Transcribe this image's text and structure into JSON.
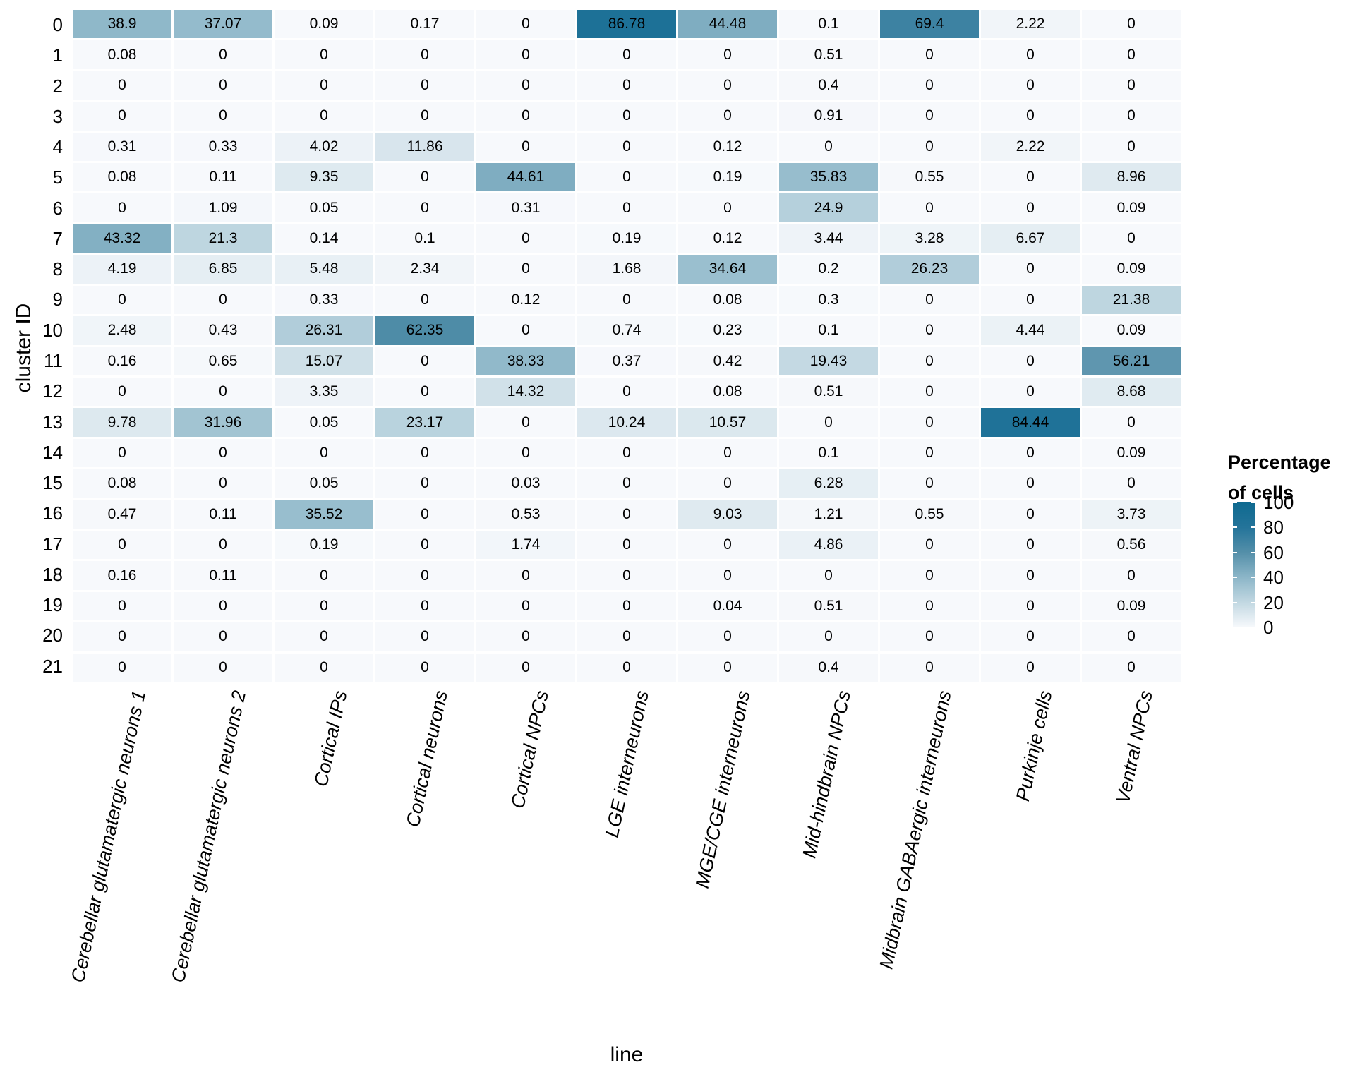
{
  "figure": {
    "background": "#ffffff",
    "grid_gap_color": "#ffffff",
    "text_color": "#000000"
  },
  "chart_data": {
    "type": "heatmap",
    "title": "",
    "xlabel": "line",
    "ylabel": "cluster ID",
    "legend_title": "Percentage of cells",
    "legend_title_lines": [
      "Percentage",
      "of cells"
    ],
    "legend_ticks": [
      100,
      80,
      60,
      40,
      20,
      0
    ],
    "value_range": [
      0,
      100
    ],
    "grid": false,
    "legend_position": "right",
    "color_scale": {
      "min": 0,
      "max": 100,
      "stops": [
        {
          "value": 0,
          "color": "#f7f9fc"
        },
        {
          "value": 20,
          "color": "#c2d8e2"
        },
        {
          "value": 40,
          "color": "#8cb6c8"
        },
        {
          "value": 60,
          "color": "#548fa9"
        },
        {
          "value": 80,
          "color": "#24749a"
        },
        {
          "value": 100,
          "color": "#0f6a90"
        }
      ]
    },
    "columns": [
      "Cerebellar glutamatergic neurons 1",
      "Cerebellar glutamatergic neurons 2",
      "Cortical IPs",
      "Cortical neurons",
      "Cortical NPCs",
      "LGE interneurons",
      "MGE/CGE interneurons",
      "Mid-hindbrain NPCs",
      "Midbrain GABAergic interneurons",
      "Purkinje cells",
      "Ventral NPCs"
    ],
    "rows": [
      "0",
      "1",
      "2",
      "3",
      "4",
      "5",
      "6",
      "7",
      "8",
      "9",
      "10",
      "11",
      "12",
      "13",
      "14",
      "15",
      "16",
      "17",
      "18",
      "19",
      "20",
      "21"
    ],
    "values": [
      [
        38.9,
        37.07,
        0.09,
        0.17,
        0,
        86.78,
        44.48,
        0.1,
        69.4,
        2.22,
        0
      ],
      [
        0.08,
        0,
        0,
        0,
        0,
        0,
        0,
        0.51,
        0,
        0,
        0
      ],
      [
        0,
        0,
        0,
        0,
        0,
        0,
        0,
        0.4,
        0,
        0,
        0
      ],
      [
        0,
        0,
        0,
        0,
        0,
        0,
        0,
        0.91,
        0,
        0,
        0
      ],
      [
        0.31,
        0.33,
        4.02,
        11.86,
        0,
        0,
        0.12,
        0,
        0,
        2.22,
        0
      ],
      [
        0.08,
        0.11,
        9.35,
        0,
        44.61,
        0,
        0.19,
        35.83,
        0.55,
        0,
        8.96
      ],
      [
        0,
        1.09,
        0.05,
        0,
        0.31,
        0,
        0,
        24.9,
        0,
        0,
        0.09
      ],
      [
        43.32,
        21.3,
        0.14,
        0.1,
        0,
        0.19,
        0.12,
        3.44,
        3.28,
        6.67,
        0
      ],
      [
        4.19,
        6.85,
        5.48,
        2.34,
        0,
        1.68,
        34.64,
        0.2,
        26.23,
        0,
        0.09
      ],
      [
        0,
        0,
        0.33,
        0,
        0.12,
        0,
        0.08,
        0.3,
        0,
        0,
        21.38
      ],
      [
        2.48,
        0.43,
        26.31,
        62.35,
        0,
        0.74,
        0.23,
        0.1,
        0,
        4.44,
        0.09
      ],
      [
        0.16,
        0.65,
        15.07,
        0,
        38.33,
        0.37,
        0.42,
        19.43,
        0,
        0,
        56.21
      ],
      [
        0,
        0,
        3.35,
        0,
        14.32,
        0,
        0.08,
        0.51,
        0,
        0,
        8.68
      ],
      [
        9.78,
        31.96,
        0.05,
        23.17,
        0,
        10.24,
        10.57,
        0,
        0,
        84.44,
        0
      ],
      [
        0,
        0,
        0,
        0,
        0,
        0,
        0,
        0.1,
        0,
        0,
        0.09
      ],
      [
        0.08,
        0,
        0.05,
        0,
        0.03,
        0,
        0,
        6.28,
        0,
        0,
        0
      ],
      [
        0.47,
        0.11,
        35.52,
        0,
        0.53,
        0,
        9.03,
        1.21,
        0.55,
        0,
        3.73
      ],
      [
        0,
        0,
        0.19,
        0,
        1.74,
        0,
        0,
        4.86,
        0,
        0,
        0.56
      ],
      [
        0.16,
        0.11,
        0,
        0,
        0,
        0,
        0,
        0,
        0,
        0,
        0
      ],
      [
        0,
        0,
        0,
        0,
        0,
        0,
        0.04,
        0.51,
        0,
        0,
        0.09
      ],
      [
        0,
        0,
        0,
        0,
        0,
        0,
        0,
        0,
        0,
        0,
        0
      ],
      [
        0,
        0,
        0,
        0,
        0,
        0,
        0,
        0.4,
        0,
        0,
        0
      ]
    ]
  }
}
